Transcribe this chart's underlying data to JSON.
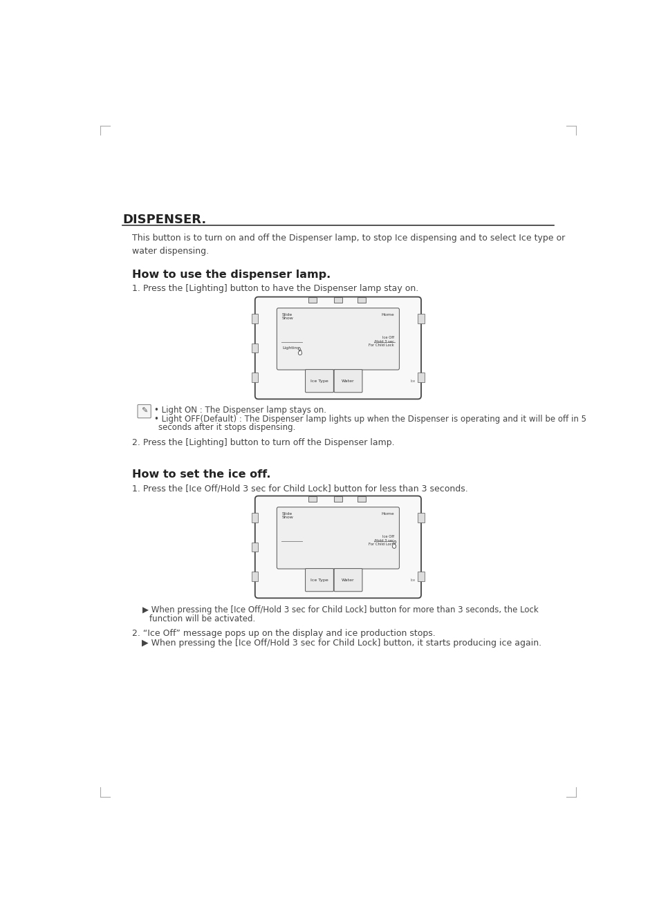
{
  "bg_color": "#ffffff",
  "title": "DISPENSER.",
  "title_fontsize": 13,
  "intro_text": "This button is to turn on and off the Dispenser lamp, to stop Ice dispensing and to select Ice type or\nwater dispensing.",
  "section1_title": "How to use the dispenser lamp.",
  "section1_step1": "1. Press the [Lighting] button to have the Dispenser lamp stay on.",
  "note1_line1": "• Light ON : The Dispenser lamp stays on.",
  "note1_line2": "• Light OFF(Default) : The Dispenser lamp lights up when the Dispenser is operating and it will be off in 5",
  "note1_line3": "  seconds after it stops dispensing.",
  "section1_step2": "2. Press the [Lighting] button to turn off the Dispenser lamp.",
  "section2_title": "How to set the ice off.",
  "section2_step1": "1. Press the [Ice Off/Hold 3 sec for Child Lock] button for less than 3 seconds.",
  "note2_line1": "▶ When pressing the [Ice Off/Hold 3 sec for Child Lock] button for more than 3 seconds, the Lock",
  "note2_line2": "  function will be activated.",
  "step2_line1": "2. “Ice Off” message pops up on the display and ice production stops.",
  "step2_line2": "▶ When pressing the [Ice Off/Hold 3 sec for Child Lock] button, it starts producing ice again.",
  "text_color": "#444444",
  "text_color_dark": "#222222",
  "outline_color": "#555555"
}
